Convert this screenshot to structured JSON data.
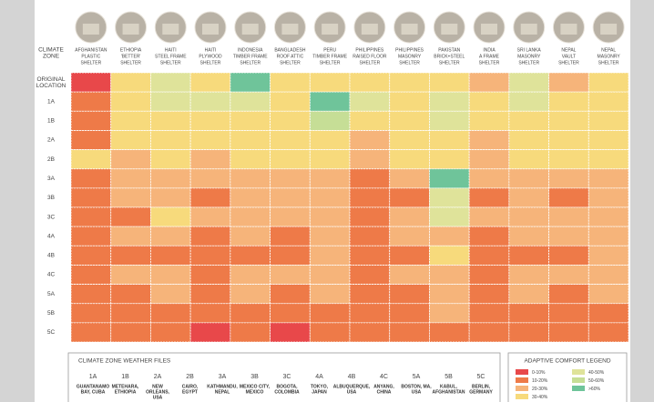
{
  "chart_data": {
    "type": "heatmap",
    "y_title": [
      "CLIMATE",
      "ZONE"
    ],
    "x_categories": [
      [
        "AFGHANISTAN",
        "PLASTIC",
        "SHELTER"
      ],
      [
        "ETHIOPIA",
        "'BETTER'",
        "SHELTER"
      ],
      [
        "HAITI",
        "STEEL FRAME",
        "SHELTER"
      ],
      [
        "HAITI",
        "PLYWOOD",
        "SHELTER"
      ],
      [
        "INDONESIA",
        "TIMBER FRAME",
        "SHELTER"
      ],
      [
        "BANGLADESH",
        "ROOF ATTIC",
        "SHELTER"
      ],
      [
        "PERU",
        "TIMBER FRAME",
        "SHELTER"
      ],
      [
        "PHILIPPINES",
        "RAISED FLOOR",
        "SHELTER"
      ],
      [
        "PHILIPPINES",
        "MASONRY",
        "SHELTER"
      ],
      [
        "PAKISTAN",
        "BRICK+STEEL",
        "SHELTER"
      ],
      [
        "INDIA",
        "A FRAME",
        "SHELTER"
      ],
      [
        "SRI LANKA",
        "MASONRY",
        "SHELTER"
      ],
      [
        "NEPAL",
        "VAULT",
        "SHELTER"
      ],
      [
        "NEPAL",
        "MASONRY",
        "SHELTER"
      ]
    ],
    "y_categories": [
      [
        "ORIGINAL",
        "LOCATION"
      ],
      [
        "1A"
      ],
      [
        "1B"
      ],
      [
        "2A"
      ],
      [
        "2B"
      ],
      [
        "3A"
      ],
      [
        "3B"
      ],
      [
        "3C"
      ],
      [
        "4A"
      ],
      [
        "4B"
      ],
      [
        "4C"
      ],
      [
        "5A"
      ],
      [
        "5B"
      ],
      [
        "5C"
      ]
    ],
    "values": [
      [
        5,
        35,
        45,
        35,
        65,
        35,
        35,
        35,
        35,
        35,
        25,
        45,
        25,
        35
      ],
      [
        15,
        35,
        45,
        45,
        45,
        35,
        65,
        45,
        35,
        45,
        35,
        45,
        35,
        35
      ],
      [
        15,
        35,
        35,
        35,
        35,
        35,
        55,
        35,
        35,
        45,
        35,
        35,
        35,
        35
      ],
      [
        15,
        35,
        35,
        35,
        35,
        35,
        35,
        25,
        35,
        35,
        25,
        35,
        35,
        35
      ],
      [
        35,
        25,
        35,
        25,
        35,
        35,
        35,
        25,
        35,
        35,
        25,
        35,
        35,
        35
      ],
      [
        15,
        25,
        25,
        25,
        25,
        25,
        25,
        15,
        25,
        65,
        25,
        25,
        25,
        25
      ],
      [
        15,
        25,
        25,
        15,
        25,
        25,
        25,
        15,
        15,
        45,
        15,
        25,
        15,
        25
      ],
      [
        15,
        15,
        35,
        25,
        25,
        25,
        25,
        15,
        25,
        45,
        25,
        25,
        25,
        25
      ],
      [
        15,
        25,
        25,
        15,
        25,
        15,
        25,
        15,
        25,
        25,
        15,
        25,
        25,
        25
      ],
      [
        15,
        15,
        15,
        15,
        15,
        15,
        25,
        15,
        15,
        35,
        15,
        15,
        15,
        25
      ],
      [
        15,
        25,
        25,
        15,
        25,
        25,
        25,
        15,
        25,
        25,
        15,
        25,
        25,
        25
      ],
      [
        15,
        15,
        25,
        15,
        25,
        15,
        25,
        15,
        15,
        25,
        15,
        25,
        15,
        25
      ],
      [
        15,
        15,
        15,
        15,
        15,
        15,
        15,
        15,
        15,
        25,
        15,
        15,
        15,
        15
      ],
      [
        15,
        15,
        15,
        5,
        15,
        5,
        15,
        15,
        15,
        15,
        15,
        15,
        15,
        15
      ]
    ],
    "weather_files": {
      "title": "CLIMATE ZONE WEATHER FILES",
      "zones": [
        {
          "zone": "1A",
          "city": [
            "GUANTANAMO",
            "BAY, CUBA"
          ]
        },
        {
          "zone": "1B",
          "city": [
            "METEHARA,",
            "ETHIOPIA"
          ]
        },
        {
          "zone": "2A",
          "city": [
            "NEW",
            "ORLEANS,",
            "USA"
          ]
        },
        {
          "zone": "2B",
          "city": [
            "CAIRO,",
            "EGYPT"
          ]
        },
        {
          "zone": "3A",
          "city": [
            "KATHMANDU,",
            "NEPAL"
          ]
        },
        {
          "zone": "3B",
          "city": [
            "MEXICO CITY,",
            "MEXICO"
          ]
        },
        {
          "zone": "3C",
          "city": [
            "BOGOTA,",
            "COLOMBIA"
          ]
        },
        {
          "zone": "4A",
          "city": [
            "TOKYO,",
            "JAPAN"
          ]
        },
        {
          "zone": "4B",
          "city": [
            "ALBUQUERQUE,",
            "USA"
          ]
        },
        {
          "zone": "4C",
          "city": [
            "ANYANG,",
            "CHINA"
          ]
        },
        {
          "zone": "5A",
          "city": [
            "BOSTON, MA,",
            "USA"
          ]
        },
        {
          "zone": "5B",
          "city": [
            "KABUL,",
            "AFGHANISTAN"
          ]
        },
        {
          "zone": "5C",
          "city": [
            "BERLIN,",
            "GERMANY"
          ]
        }
      ]
    },
    "legend": {
      "title": "ADAPTIVE COMFORT LEGEND",
      "items": [
        {
          "label": "0-10%",
          "min": 0,
          "color": "#e8484a"
        },
        {
          "label": "10-20%",
          "min": 10,
          "color": "#ee7a48"
        },
        {
          "label": "20-30%",
          "min": 20,
          "color": "#f6b47a"
        },
        {
          "label": "30-40%",
          "min": 30,
          "color": "#f7da7c"
        },
        {
          "label": "40-50%",
          "min": 40,
          "color": "#dfe39a"
        },
        {
          "label": "50-60%",
          "min": 50,
          "color": "#c6de96"
        },
        {
          "label": ">60%",
          "min": 60,
          "color": "#6fc49a"
        }
      ]
    }
  }
}
